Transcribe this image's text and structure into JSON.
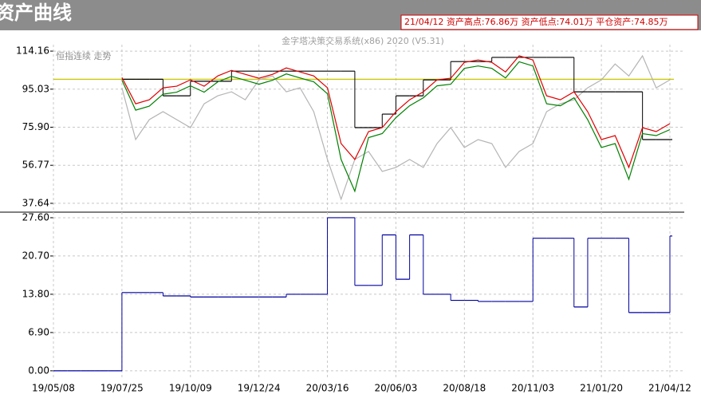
{
  "chart_data": [
    {
      "type": "line",
      "title": "资产曲线",
      "annotation": "21/04/12 资产高点:76.86万  资产低点:74.01万  平仓资产:74.85万",
      "subtitle": "金字塔决策交易系统(x86) 2020 (V5.31)",
      "ylim": [
        33.2,
        117.4
      ],
      "yticks": [
        114.16,
        95.03,
        {
          "value": 75.9,
          "label": "75.90"
        },
        56.77,
        37.64
      ],
      "grid": true,
      "ref_line": {
        "value": 100,
        "color": "#c8c800"
      },
      "series": [
        {
          "name": "恒指连续 走势",
          "color": "#b4b4b4",
          "values": [
            null,
            null,
            null,
            null,
            null,
            95.7,
            69.7,
            79.7,
            83.7,
            79.7,
            75.7,
            87.7,
            91.7,
            93.7,
            89.7,
            99.7,
            101.7,
            93.7,
            95.7,
            83.7,
            59.7,
            39.7,
            59.7,
            63.7,
            53.7,
            55.7,
            59.7,
            55.7,
            67.7,
            75.7,
            65.7,
            69.7,
            67.7,
            55.7,
            63.7,
            67.7,
            83.7,
            87.7,
            89.7,
            95.7,
            99.7,
            107.7,
            101.7,
            111.8,
            95.7,
            99.7
          ]
        },
        {
          "color": "#000000",
          "step": true,
          "values": [
            null,
            null,
            null,
            null,
            null,
            100,
            100,
            100,
            91.7,
            91.7,
            99,
            99,
            99,
            104.1,
            104.1,
            104.1,
            104.1,
            104.1,
            104.1,
            104.1,
            104.1,
            104.1,
            75.7,
            75.7,
            82.5,
            91.7,
            91.7,
            99.7,
            99.7,
            108.9,
            108.9,
            108.9,
            111,
            111,
            111,
            111,
            111,
            111,
            93.7,
            93.7,
            93.7,
            93.7,
            93.7,
            69.7,
            69.7,
            69.7
          ]
        },
        {
          "color": "#008000",
          "values": [
            null,
            null,
            null,
            null,
            null,
            99.5,
            84.5,
            86.5,
            92.5,
            93.5,
            96.7,
            93.5,
            98.7,
            101.5,
            99.5,
            97.5,
            99.5,
            102.7,
            100.7,
            98.7,
            92.7,
            59.7,
            43.7,
            70.7,
            72.7,
            80.7,
            86.7,
            90.7,
            96.7,
            97.5,
            105.5,
            106.7,
            105.5,
            100.7,
            108.8,
            106.7,
            87.7,
            86.7,
            90.7,
            79.7,
            65.7,
            67.7,
            49.7,
            72.7,
            71.7,
            74.7
          ]
        },
        {
          "color": "#e00000",
          "values": [
            null,
            null,
            null,
            null,
            null,
            100.9,
            87.7,
            89.7,
            95.7,
            96.5,
            99.7,
            96.5,
            101.7,
            104.5,
            102.5,
            100.5,
            102.5,
            105.7,
            103.7,
            101.7,
            95.7,
            67.7,
            59.7,
            73.7,
            75.7,
            83.7,
            89.7,
            93.7,
            99.7,
            100.5,
            108.5,
            109.7,
            108.5,
            103.7,
            111.8,
            109.7,
            91.7,
            89.7,
            93.7,
            83.7,
            69.7,
            71.7,
            55.7,
            75.7,
            73.7,
            77.7
          ]
        }
      ]
    },
    {
      "type": "line",
      "categories": [
        "19/05/08",
        null,
        null,
        null,
        null,
        "19/07/25",
        null,
        null,
        null,
        null,
        "19/10/09",
        null,
        null,
        null,
        null,
        "19/12/24",
        null,
        null,
        null,
        null,
        "20/03/16",
        null,
        null,
        null,
        null,
        "20/06/03",
        null,
        null,
        null,
        null,
        "20/08/18",
        null,
        null,
        null,
        null,
        "20/11/03",
        null,
        null,
        null,
        null,
        "21/01/20",
        null,
        null,
        null,
        null,
        "21/04/12"
      ],
      "ylim": [
        -1.6,
        28.6
      ],
      "yticks": [
        {
          "value": 27.6,
          "label": "27.60"
        },
        {
          "value": 20.7,
          "label": "20.70"
        },
        {
          "value": 13.8,
          "label": "13.80"
        },
        {
          "value": 6.9,
          "label": "6.90"
        },
        {
          "value": 0,
          "label": "0.00"
        }
      ],
      "grid": true,
      "series": [
        {
          "color": "#0000a0",
          "step": true,
          "values": [
            0,
            0,
            0,
            0,
            0,
            14.1,
            14.1,
            14.1,
            13.5,
            13.5,
            13.3,
            13.3,
            13.3,
            13.3,
            13.3,
            13.3,
            13.3,
            13.8,
            13.8,
            13.8,
            27.6,
            27.6,
            15.4,
            15.4,
            24.5,
            16.5,
            24.5,
            13.8,
            13.8,
            12.7,
            12.7,
            12.5,
            12.5,
            12.5,
            12.5,
            23.9,
            23.9,
            23.9,
            11.5,
            23.9,
            23.9,
            23.9,
            10.5,
            10.5,
            10.5,
            24.3
          ]
        }
      ]
    }
  ]
}
